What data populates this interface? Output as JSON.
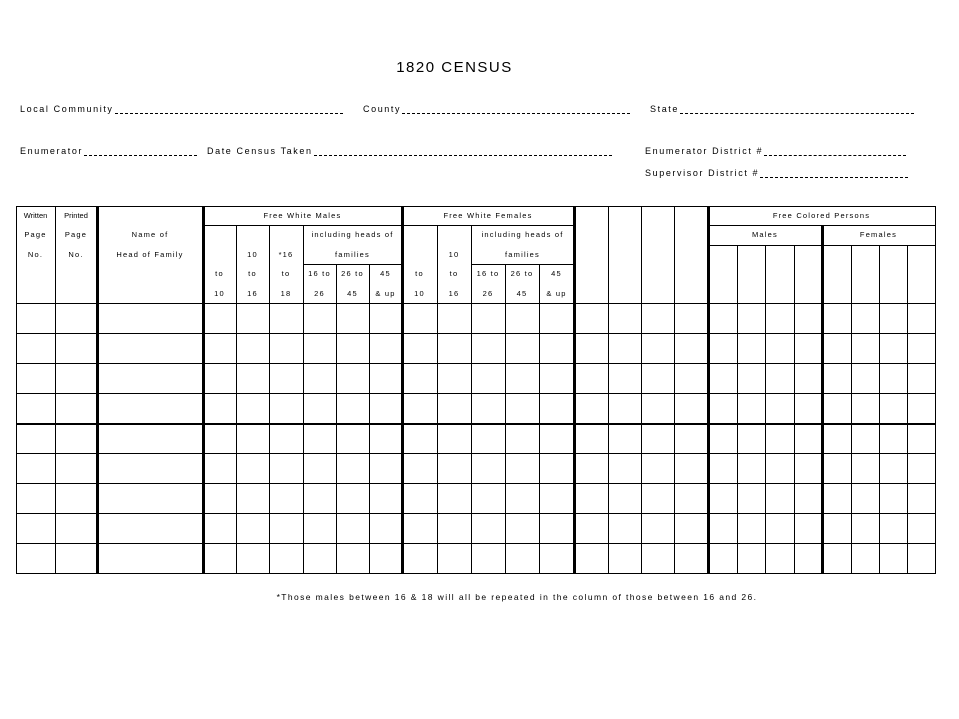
{
  "title": "1820 CENSUS",
  "fields": {
    "local_community": "Local Community",
    "county": "County",
    "state": "State",
    "enumerator": "Enumerator",
    "date_taken": "Date Census Taken",
    "enumerator_district": "Enumerator District #",
    "supervisor_district": "Supervisor District #"
  },
  "table": {
    "written": "Written",
    "printed": "Printed",
    "page": "Page",
    "no": "No.",
    "name_of": "Name of",
    "head_of_family": "Head of Family",
    "free_white_males": "Free White Males",
    "free_white_females": "Free White Females",
    "free_colored_persons": "Free Colored Persons",
    "males": "Males",
    "females": "Females",
    "including_heads_of": "including heads of",
    "families": "families",
    "to": "to",
    "n10": "10",
    "n16": "16",
    "n16_star": "*16",
    "n18": "18",
    "n26": "26",
    "n45": "45",
    "t16to": "16 to",
    "t26to": "26 to",
    "and_up": "& up",
    "data_rows": 9
  },
  "footnote": "*Those males between 16 & 18 will all be repeated in the column of those between 16 and 26."
}
